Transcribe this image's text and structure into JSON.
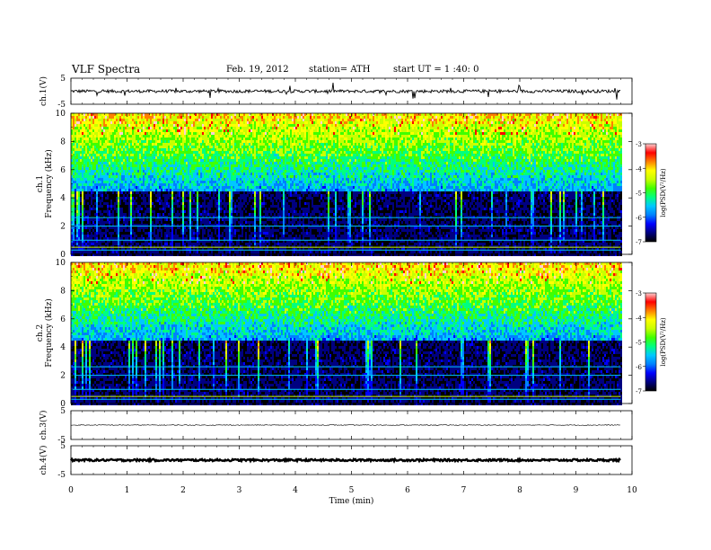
{
  "header": {
    "title": "VLF  Spectra",
    "date": "Feb. 19, 2012",
    "station": "station= ATH",
    "start": "start  UT  =   1 :40: 0"
  },
  "colors": {
    "background": "#ffffff",
    "axes": "#000000",
    "colormap": [
      "#000000",
      "#000080",
      "#0000ff",
      "#0080ff",
      "#00c8ff",
      "#00ff80",
      "#40ff00",
      "#c8ff00",
      "#ffff00",
      "#ff8000",
      "#ff0000",
      "#ffd0d0"
    ]
  },
  "chart_data": [
    {
      "type": "line",
      "panel": "ch1",
      "ylabel": "ch.1(V)",
      "ylim": [
        -5,
        5
      ],
      "yticks": [
        "5",
        "-5"
      ],
      "baseline": 0.5,
      "noise_amplitude": 0.6,
      "xlim": [
        0,
        10
      ],
      "x_end": 9.8
    },
    {
      "type": "heatmap",
      "panel": "ch1-spectrogram",
      "ylabel_top": "ch.1",
      "ylabel": "Frequency  (kHz)",
      "ylim": [
        0,
        10
      ],
      "yticks": [
        "0",
        "2",
        "4",
        "6",
        "8",
        "10"
      ],
      "xlim": [
        0,
        10
      ],
      "x_end": 9.8,
      "colorbar": {
        "label": "log(PSD(V²/Hz)",
        "min": -7,
        "max": -3,
        "ticks": [
          "-3",
          "-4",
          "-5",
          "-6",
          "-7"
        ]
      }
    },
    {
      "type": "heatmap",
      "panel": "ch2-spectrogram",
      "ylabel_top": "ch.2",
      "ylabel": "Frequency  (kHz)",
      "ylim": [
        0,
        10
      ],
      "yticks": [
        "0",
        "2",
        "4",
        "6",
        "8",
        "10"
      ],
      "xlim": [
        0,
        10
      ],
      "x_end": 9.8,
      "colorbar": {
        "label": "log(PSD(V²/Hz)",
        "min": -7,
        "max": -3,
        "ticks": [
          "-3",
          "-4",
          "-5",
          "-6",
          "-7"
        ]
      }
    },
    {
      "type": "line",
      "panel": "ch3",
      "ylabel": "ch.3(V)",
      "ylim": [
        -5,
        5
      ],
      "yticks": [
        "5",
        "-5"
      ],
      "baseline": 0.3,
      "noise_amplitude": 0.15,
      "xlim": [
        0,
        10
      ],
      "x_end": 9.8
    },
    {
      "type": "line",
      "panel": "ch4",
      "ylabel": "ch.4(V)",
      "ylim": [
        -5,
        5
      ],
      "yticks": [
        "5",
        "-5"
      ],
      "baseline": 0.3,
      "noise_amplitude": 0.35,
      "xlim": [
        0,
        10
      ],
      "x_end": 9.8
    }
  ],
  "xaxis": {
    "label": "Time  (min)",
    "ticks": [
      "0",
      "1",
      "2",
      "3",
      "4",
      "5",
      "6",
      "7",
      "8",
      "9",
      "10"
    ]
  }
}
